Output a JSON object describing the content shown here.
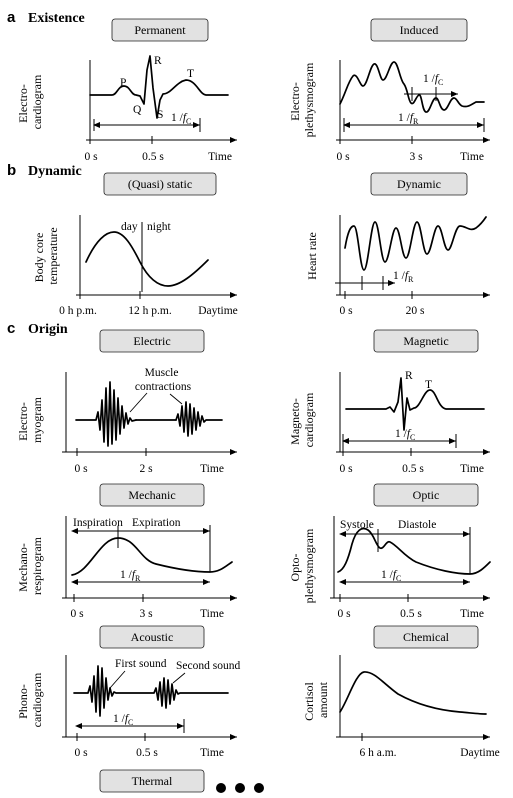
{
  "sections": {
    "a": {
      "letter": "a",
      "title": "Existence"
    },
    "b": {
      "letter": "b",
      "title": "Dynamic"
    },
    "c": {
      "letter": "c",
      "title": "Origin"
    }
  },
  "panels": {
    "permanent": {
      "box": "Permanent",
      "ylabel": [
        "Electro-",
        "cardiogram"
      ],
      "ticks": [
        "0 s",
        "0.5 s"
      ],
      "xlabel": "Time",
      "labels": {
        "p": "P",
        "q": "Q",
        "r": "R",
        "s": "S",
        "t": "T"
      },
      "dim": {
        "pre": "1 /",
        "sym": "f",
        "sub": "C"
      }
    },
    "induced": {
      "box": "Induced",
      "ylabel": [
        "Electro-",
        "plethysmogram"
      ],
      "ticks": [
        "0 s",
        "3 s"
      ],
      "xlabel": "Time",
      "dim_c": {
        "pre": "1 /",
        "sym": "f",
        "sub": "C"
      },
      "dim_r": {
        "pre": "1 /",
        "sym": "f",
        "sub": "R"
      }
    },
    "quasistatic": {
      "box": "(Quasi) static",
      "ylabel": [
        "Body core",
        "temperature"
      ],
      "ticks": [
        "0 h p.m.",
        "12 h p.m."
      ],
      "xlabel": "Daytime",
      "day": "day",
      "night": "night"
    },
    "dynamic": {
      "box": "Dynamic",
      "ylabel": [
        "Heart rate"
      ],
      "ticks": [
        "0 s",
        "20 s"
      ],
      "dim": {
        "pre": "1 /",
        "sym": "f",
        "sub": "R"
      }
    },
    "electric": {
      "box": "Electric",
      "ylabel": [
        "Electro-",
        "myogram"
      ],
      "ticks": [
        "0 s",
        "2 s"
      ],
      "xlabel": "Time",
      "annotation": [
        "Muscle",
        "contractions"
      ]
    },
    "magnetic": {
      "box": "Magnetic",
      "ylabel": [
        "Magneto-",
        "cardiogram"
      ],
      "ticks": [
        "0 s",
        "0.5 s"
      ],
      "xlabel": "Time",
      "labels": {
        "r": "R",
        "t": "T"
      },
      "dim": {
        "pre": "1 /",
        "sym": "f",
        "sub": "C"
      }
    },
    "mechanic": {
      "box": "Mechanic",
      "ylabel": [
        "Mechano-",
        "respirogram"
      ],
      "ticks": [
        "0 s",
        "3 s"
      ],
      "xlabel": "Time",
      "inspiration": "Inspiration",
      "expiration": "Expiration",
      "dim": {
        "pre": "1 /",
        "sym": "f",
        "sub": "R"
      }
    },
    "optic": {
      "box": "Optic",
      "ylabel": [
        "Opto-",
        "plethysmogram"
      ],
      "ticks": [
        "0 s",
        "0.5 s"
      ],
      "xlabel": "Time",
      "systole": "Systole",
      "diastole": "Diastole",
      "dim": {
        "pre": "1 /",
        "sym": "f",
        "sub": "C"
      }
    },
    "acoustic": {
      "box": "Acoustic",
      "ylabel": [
        "Phono-",
        "cardiogram"
      ],
      "ticks": [
        "0 s",
        "0.5 s"
      ],
      "xlabel": "Time",
      "first_sound": "First sound",
      "second_sound": "Second sound",
      "dim": {
        "pre": "1 /",
        "sym": "f",
        "sub": "C"
      }
    },
    "chemical": {
      "box": "Chemical",
      "ylabel": [
        "Cortisol",
        "amount"
      ],
      "ticks": [
        "6 h a.m."
      ],
      "xlabel": "Daytime"
    },
    "thermal": {
      "box": "Thermal"
    }
  },
  "continuation": "more-dots"
}
